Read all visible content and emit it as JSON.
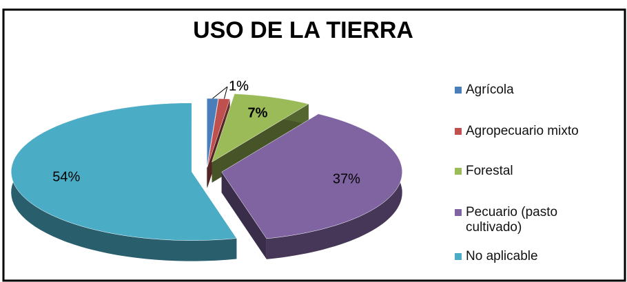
{
  "chart_data": {
    "type": "pie3d",
    "title": "USO DE LA TIERRA",
    "categories": [
      "Agrícola",
      "Agropecuario mixto",
      "Forestal",
      "Pecuario (pasto cultivado)",
      "No aplicable"
    ],
    "values": [
      1,
      1,
      7,
      37,
      54
    ],
    "value_labels": [
      "1%",
      "1%",
      "7%",
      "37%",
      "54%"
    ],
    "colors": [
      "#4a7ebb",
      "#c0504d",
      "#9bbb59",
      "#8064a2",
      "#4bacc6"
    ],
    "legend": "right"
  }
}
